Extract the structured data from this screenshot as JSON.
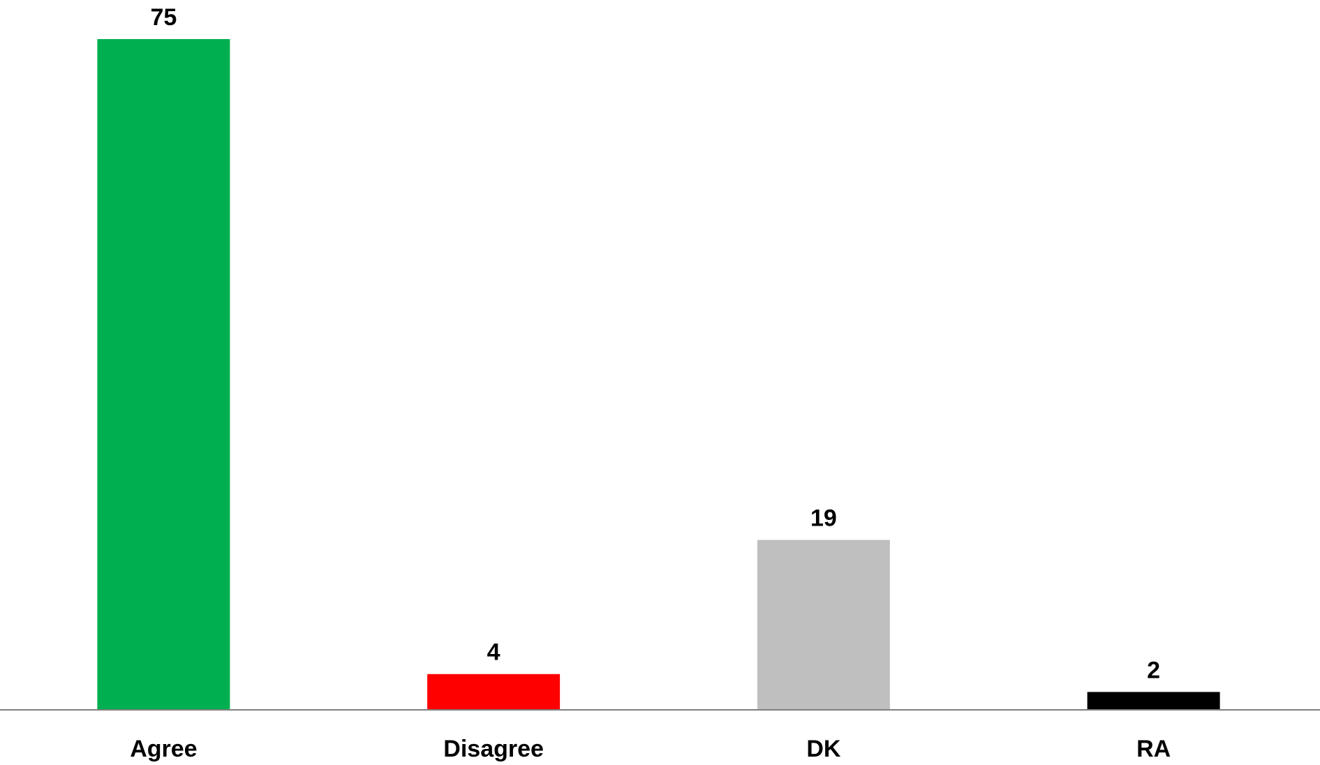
{
  "chart_data": {
    "type": "bar",
    "title": "",
    "xlabel": "",
    "ylabel": "",
    "categories": [
      "Agree",
      "Disagree",
      "DK",
      "RA"
    ],
    "values": [
      75,
      4,
      19,
      2
    ],
    "data_labels": [
      "75",
      "4",
      "19",
      "2"
    ],
    "colors": [
      "#00b050",
      "#ff0000",
      "#bfbfbf",
      "#000000"
    ],
    "ylim": [
      0,
      75
    ],
    "grid": false,
    "legend": "none",
    "axis_color": "#7f7f7f"
  }
}
